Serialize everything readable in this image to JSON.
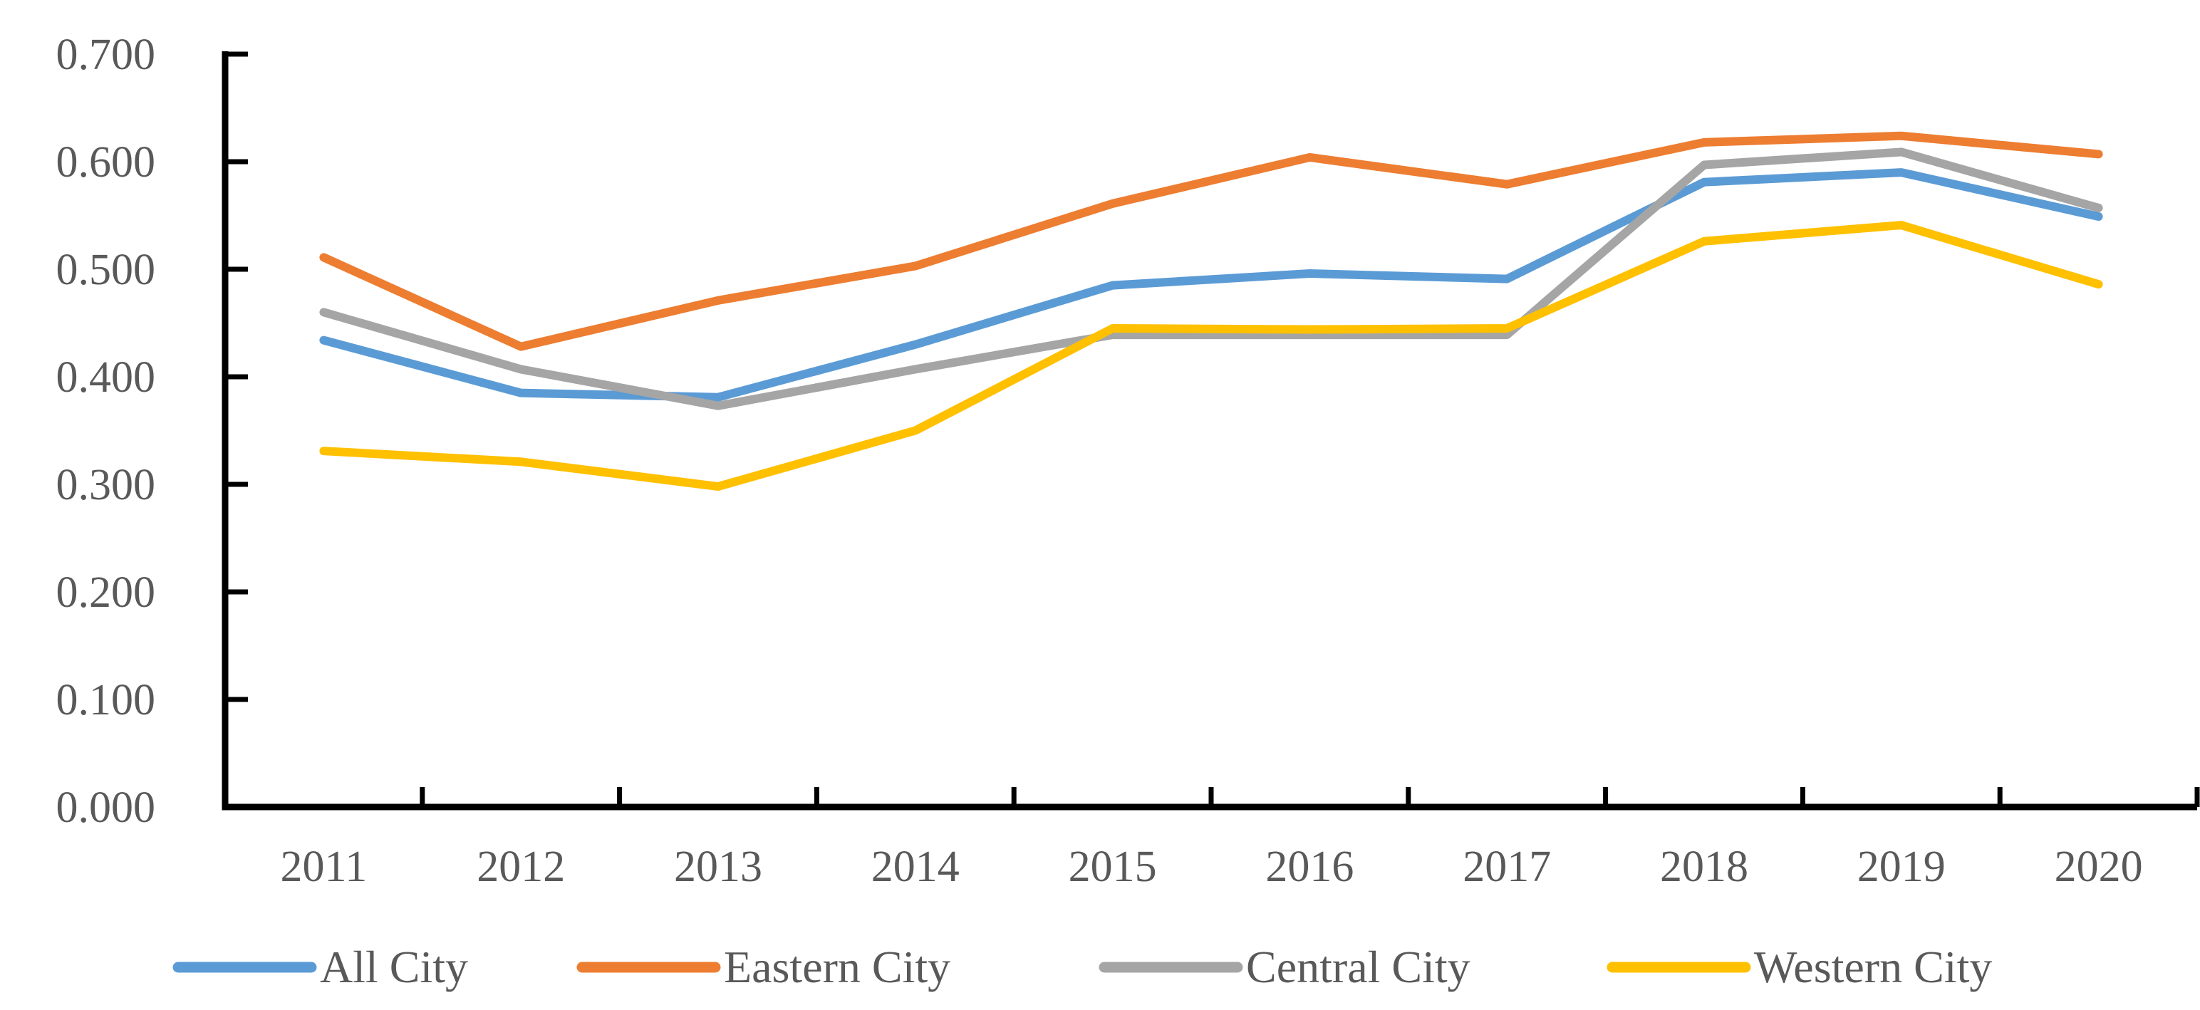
{
  "chart_data": {
    "type": "line",
    "title": "",
    "xlabel": "",
    "ylabel": "",
    "categories": [
      "2011",
      "2012",
      "2013",
      "2014",
      "2015",
      "2016",
      "2017",
      "2018",
      "2019",
      "2020"
    ],
    "series": [
      {
        "name": "All City",
        "color": "#5B9BD5",
        "values": [
          0.434,
          0.385,
          0.381,
          0.43,
          0.485,
          0.496,
          0.491,
          0.581,
          0.59,
          0.549
        ]
      },
      {
        "name": "Eastern City",
        "color": "#ED7D31",
        "values": [
          0.511,
          0.428,
          0.471,
          0.503,
          0.561,
          0.604,
          0.579,
          0.618,
          0.624,
          0.607
        ]
      },
      {
        "name": "Central City",
        "color": "#A5A5A5",
        "values": [
          0.46,
          0.407,
          0.373,
          0.407,
          0.439,
          0.439,
          0.439,
          0.597,
          0.609,
          0.557
        ]
      },
      {
        "name": "Western City",
        "color": "#FFC000",
        "values": [
          0.331,
          0.321,
          0.298,
          0.35,
          0.445,
          0.444,
          0.445,
          0.526,
          0.541,
          0.486
        ]
      }
    ],
    "ylim": [
      0.0,
      0.7
    ],
    "ytick_interval": 0.1,
    "ytick_labels": [
      "0.000",
      "0.100",
      "0.200",
      "0.300",
      "0.400",
      "0.500",
      "0.600",
      "0.700"
    ],
    "grid": false,
    "legend_position": "bottom",
    "legend_entries": [
      "All City",
      "Eastern City",
      "Central City",
      "Western City"
    ],
    "axis_color": "#000000",
    "label_color": "#595959"
  }
}
